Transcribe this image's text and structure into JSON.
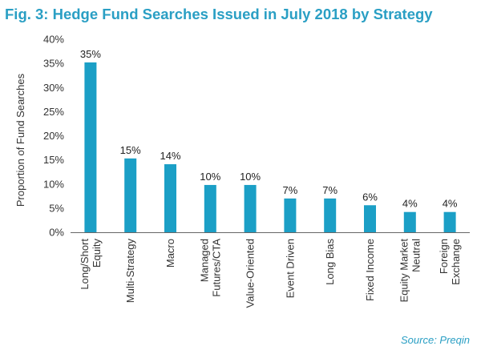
{
  "header": {
    "title": "Fig. 3: Hedge Fund Searches Issued in July 2018 by Strategy"
  },
  "footer": {
    "source": "Source: Preqin"
  },
  "colors": {
    "bar": "#1b9fc6",
    "title": "#2a9fc4",
    "axis": "#666666"
  },
  "chart_data": {
    "type": "bar",
    "title": "Fig. 3: Hedge Fund Searches Issued in July 2018 by Strategy",
    "xlabel": "",
    "ylabel": "Proportion of Fund Searches",
    "ylim": [
      0,
      40
    ],
    "yticks": [
      0,
      5,
      10,
      15,
      20,
      25,
      30,
      35,
      40
    ],
    "ytick_labels": [
      "0%",
      "5%",
      "10%",
      "15%",
      "20%",
      "25%",
      "30%",
      "35%",
      "40%"
    ],
    "grid": false,
    "categories": [
      [
        "Long/Short",
        "Equity"
      ],
      [
        "Multi-Strategy"
      ],
      [
        "Macro"
      ],
      [
        "Managed",
        "Futures/CTA"
      ],
      [
        "Value-Oriented"
      ],
      [
        "Event Driven"
      ],
      [
        "Long Bias"
      ],
      [
        "Fixed Income"
      ],
      [
        "Equity Market",
        "Neutral"
      ],
      [
        "Foreign",
        "Exchange"
      ]
    ],
    "values": [
      35.2,
      15.3,
      14.1,
      9.8,
      9.8,
      7.0,
      7.0,
      5.6,
      4.2,
      4.2
    ],
    "value_labels": [
      "35%",
      "15%",
      "14%",
      "10%",
      "10%",
      "7%",
      "7%",
      "6%",
      "4%",
      "4%"
    ]
  }
}
